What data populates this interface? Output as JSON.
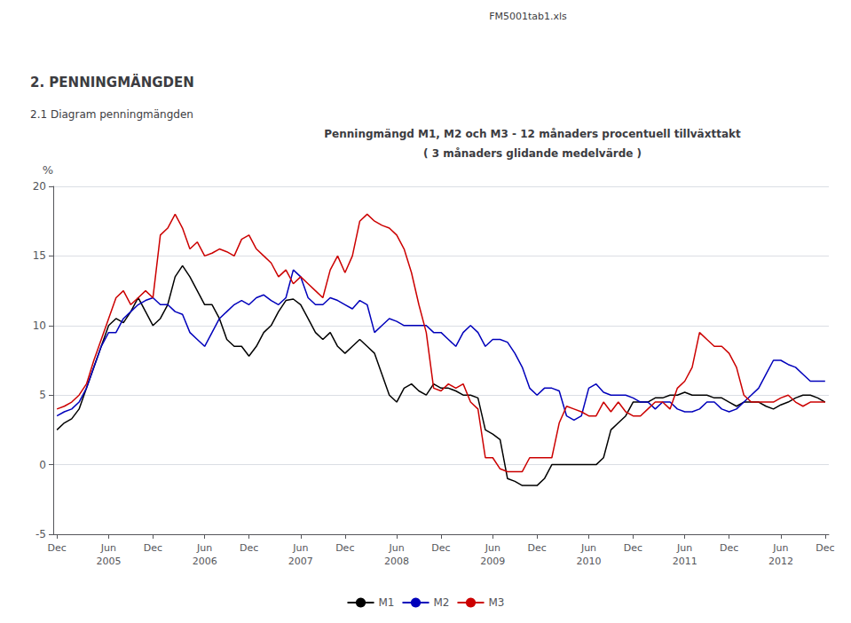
{
  "chart_data": {
    "type": "line",
    "title": "2. PENNINGMÄNGDEN",
    "subtitle": "2.1 Diagram penningmängden",
    "annotations": [
      "FM5001tab1.xls",
      "Penningmängd M1, M2 och M3 - 12 månaders procentuell tillväxttakt",
      "( 3 månaders glidande medelvärde )"
    ],
    "ylabel": "%",
    "ylim": [
      -5,
      20
    ],
    "yticks": [
      -5,
      0,
      5,
      10,
      15,
      20
    ],
    "grid": true,
    "legend": "bottom",
    "categories": [
      "Dec",
      null,
      null,
      null,
      null,
      null,
      null,
      "Jun\n2005",
      null,
      null,
      null,
      null,
      null,
      "Dec",
      null,
      null,
      null,
      null,
      null,
      null,
      "Jun\n2006",
      null,
      null,
      null,
      null,
      null,
      "Dec",
      null,
      null,
      null,
      null,
      null,
      null,
      "Jun\n2007",
      null,
      null,
      null,
      null,
      null,
      "Dec",
      null,
      null,
      null,
      null,
      null,
      null,
      "Jun\n2008",
      null,
      null,
      null,
      null,
      null,
      "Dec",
      null,
      null,
      null,
      null,
      null,
      null,
      "Jun\n2009",
      null,
      null,
      null,
      null,
      null,
      "Dec",
      null,
      null,
      null,
      null,
      null,
      null,
      "Jun\n2010",
      null,
      null,
      null,
      null,
      null,
      "Dec",
      null,
      null,
      null,
      null,
      null,
      null,
      "Jun\n2011",
      null,
      null,
      null,
      null,
      null,
      "Dec",
      null,
      null,
      null,
      null,
      null,
      null,
      "Jun\n2012",
      null,
      null,
      null,
      null,
      null,
      "Dec"
    ],
    "series": [
      {
        "name": "M1",
        "color": "#000000",
        "values": [
          2.5,
          3.0,
          3.3,
          4.0,
          5.5,
          7.0,
          8.5,
          10.0,
          10.5,
          10.2,
          11.0,
          12.0,
          11.0,
          10.0,
          10.5,
          11.5,
          13.5,
          14.3,
          13.5,
          12.5,
          11.5,
          11.5,
          10.5,
          9.0,
          8.5,
          8.5,
          7.8,
          8.5,
          9.5,
          10.0,
          11.0,
          11.8,
          11.9,
          11.5,
          10.5,
          9.5,
          9.0,
          9.5,
          8.5,
          8.0,
          8.5,
          9.0,
          8.5,
          8.0,
          6.5,
          5.0,
          4.5,
          5.5,
          5.8,
          5.3,
          5.0,
          5.8,
          5.5,
          5.5,
          5.3,
          5.0,
          5.0,
          4.8,
          2.5,
          2.2,
          1.8,
          -1.0,
          -1.2,
          -1.5,
          -1.5,
          -1.5,
          -1.0,
          0.0,
          0.0,
          0.0,
          0.0,
          0.0,
          0.0,
          0.0,
          0.5,
          2.5,
          3.0,
          3.5,
          4.5,
          4.5,
          4.5,
          4.8,
          4.8,
          5.0,
          5.0,
          5.2,
          5.0,
          5.0,
          5.0,
          4.8,
          4.8,
          4.5,
          4.2,
          4.5,
          4.5,
          4.5,
          4.2,
          4.0,
          4.3,
          4.5,
          4.8,
          5.0,
          5.0,
          4.8,
          4.5
        ]
      },
      {
        "name": "M2",
        "color": "#0000bb",
        "values": [
          3.5,
          3.8,
          4.0,
          4.5,
          5.5,
          7.0,
          8.5,
          9.5,
          9.5,
          10.5,
          11.0,
          11.5,
          11.8,
          12.0,
          11.5,
          11.5,
          11.0,
          10.8,
          9.5,
          9.0,
          8.5,
          9.5,
          10.5,
          11.0,
          11.5,
          11.8,
          11.5,
          12.0,
          12.2,
          11.8,
          11.5,
          12.0,
          14.0,
          13.5,
          12.0,
          11.5,
          11.5,
          12.0,
          11.8,
          11.5,
          11.2,
          11.8,
          11.5,
          9.5,
          10.0,
          10.5,
          10.3,
          10.0,
          10.0,
          10.0,
          10.0,
          9.5,
          9.5,
          9.0,
          8.5,
          9.5,
          10.0,
          9.5,
          8.5,
          9.0,
          9.0,
          8.8,
          8.0,
          7.0,
          5.5,
          5.0,
          5.5,
          5.5,
          5.3,
          3.5,
          3.2,
          3.5,
          5.5,
          5.8,
          5.2,
          5.0,
          5.0,
          5.0,
          4.8,
          4.5,
          4.5,
          4.0,
          4.5,
          4.5,
          4.0,
          3.8,
          3.8,
          4.0,
          4.5,
          4.5,
          4.0,
          3.8,
          4.0,
          4.5,
          5.0,
          5.5,
          6.5,
          7.5,
          7.5,
          7.2,
          7.0,
          6.5,
          6.0,
          6.0,
          6.0
        ]
      },
      {
        "name": "M3",
        "color": "#cc0000",
        "values": [
          4.0,
          4.2,
          4.5,
          5.0,
          5.8,
          7.5,
          9.0,
          10.5,
          12.0,
          12.5,
          11.5,
          12.0,
          12.5,
          12.0,
          16.5,
          17.0,
          18.0,
          17.0,
          15.5,
          16.0,
          15.0,
          15.2,
          15.5,
          15.3,
          15.0,
          16.2,
          16.5,
          15.5,
          15.0,
          14.5,
          13.5,
          14.0,
          13.0,
          13.5,
          13.0,
          12.5,
          12.0,
          14.0,
          15.0,
          13.8,
          15.0,
          17.5,
          18.0,
          17.5,
          17.2,
          17.0,
          16.5,
          15.5,
          13.8,
          11.5,
          9.5,
          5.5,
          5.3,
          5.8,
          5.5,
          5.8,
          4.5,
          4.0,
          0.5,
          0.5,
          -0.3,
          -0.5,
          -0.5,
          -0.5,
          0.5,
          0.5,
          0.5,
          0.5,
          3.0,
          4.2,
          4.0,
          3.8,
          3.5,
          3.5,
          4.5,
          3.8,
          4.5,
          3.8,
          3.5,
          3.5,
          4.0,
          4.5,
          4.5,
          4.0,
          5.5,
          6.0,
          7.0,
          9.5,
          9.0,
          8.5,
          8.5,
          8.0,
          7.0,
          5.0,
          4.5,
          4.5,
          4.5,
          4.5,
          4.8,
          5.0,
          4.5,
          4.2,
          4.5,
          4.5,
          4.5
        ]
      }
    ]
  }
}
